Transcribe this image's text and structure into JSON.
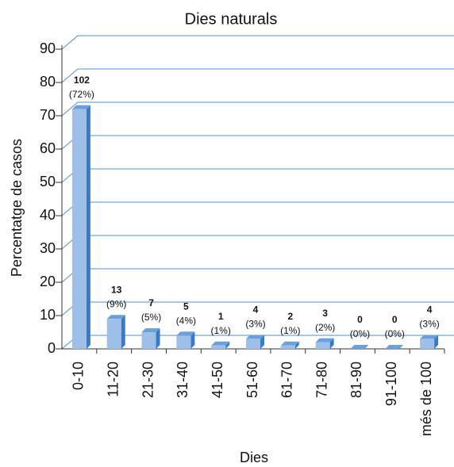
{
  "chart_data": {
    "type": "bar3d",
    "title": "Dies naturals",
    "x_label": "Dies",
    "y_label": "Percentatge de casos",
    "categories": [
      "0-10",
      "11-20",
      "21-30",
      "31-40",
      "41-50",
      "51-60",
      "61-70",
      "71-80",
      "81-90",
      "91-100",
      "més de 100"
    ],
    "values": [
      72,
      9,
      5,
      4,
      1,
      3,
      1,
      2,
      0,
      0,
      3
    ],
    "value_labels": [
      "(72%)",
      "(9%)",
      "(5%)",
      "(4%)",
      "(1%)",
      "(3%)",
      "(1%)",
      "(2%)",
      "(0%)",
      "(0%)",
      "(3%)"
    ],
    "counts": [
      102,
      13,
      7,
      5,
      1,
      4,
      2,
      3,
      0,
      0,
      4
    ],
    "color": "#9dbfe8",
    "ylim": [
      0,
      90
    ],
    "yticks": [
      0,
      10,
      20,
      30,
      40,
      50,
      60,
      70,
      80,
      90
    ],
    "grid": true
  }
}
